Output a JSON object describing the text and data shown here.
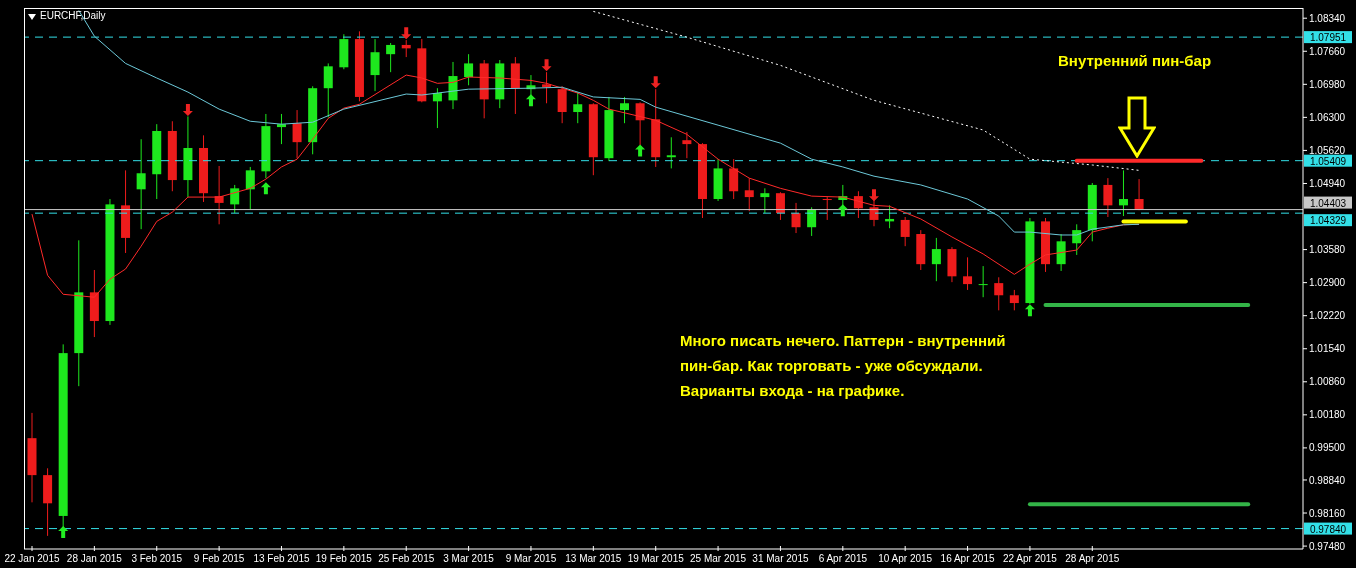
{
  "chart_data": {
    "type": "candlestick",
    "title": "EURCHF,Daily",
    "annotations": [
      "Внутренний пин-бар",
      "Много писать нечего. Паттерн - внутренний пин-бар. Как торговать - уже обсуждали. Варианты входа - на графике."
    ],
    "categories": [
      "22 Jan 2015",
      null,
      null,
      null,
      "28 Jan 2015",
      null,
      null,
      null,
      "3 Feb 2015",
      null,
      null,
      null,
      "9 Feb 2015",
      null,
      null,
      null,
      "13 Feb 2015",
      null,
      null,
      null,
      "19 Feb 2015",
      null,
      null,
      null,
      "25 Feb 2015",
      null,
      null,
      null,
      "3 Mar 2015",
      null,
      null,
      null,
      "9 Mar 2015",
      null,
      null,
      null,
      "13 Mar 2015",
      null,
      null,
      null,
      "19 Mar 2015",
      null,
      null,
      null,
      "25 Mar 2015",
      null,
      null,
      null,
      "31 Mar 2015",
      null,
      null,
      null,
      "6 Apr 2015",
      null,
      null,
      null,
      "10 Apr 2015",
      null,
      null,
      null,
      "16 Apr 2015",
      null,
      null,
      null,
      "22 Apr 2015",
      null,
      null,
      null,
      "28 Apr 2015",
      null,
      null,
      null,
      null,
      null,
      null,
      null,
      null,
      null,
      null,
      null,
      null,
      null
    ],
    "ohlc": [
      [
        0.997,
        1.0022,
        0.9838,
        0.9894
      ],
      [
        0.9894,
        0.9908,
        0.9769,
        0.9836
      ],
      [
        0.981,
        1.0163,
        0.9783,
        1.0145
      ],
      [
        1.0145,
        1.0377,
        1.0077,
        1.027
      ],
      [
        1.027,
        1.0316,
        1.0178,
        1.0211
      ],
      [
        1.0211,
        1.0462,
        1.0203,
        1.0451
      ],
      [
        1.0449,
        1.0521,
        1.0351,
        1.0382
      ],
      [
        1.0482,
        1.0585,
        1.04,
        1.0515
      ],
      [
        1.0513,
        1.0616,
        1.0462,
        1.0602
      ],
      [
        1.0602,
        1.0622,
        1.0478,
        1.0501
      ],
      [
        1.0501,
        1.0632,
        1.0466,
        1.0567
      ],
      [
        1.0567,
        1.0593,
        1.0456,
        1.0474
      ],
      [
        1.0468,
        1.053,
        1.041,
        1.0454
      ],
      [
        1.0451,
        1.0491,
        1.0433,
        1.0484
      ],
      [
        1.0482,
        1.0528,
        1.0441,
        1.0521
      ],
      [
        1.0519,
        1.0637,
        1.0505,
        1.0612
      ],
      [
        1.061,
        1.0637,
        1.0575,
        1.0616
      ],
      [
        1.0618,
        1.0645,
        1.0546,
        1.0579
      ],
      [
        1.0579,
        1.0694,
        1.0554,
        1.069
      ],
      [
        1.069,
        1.0741,
        1.063,
        1.0735
      ],
      [
        1.0733,
        1.0801,
        1.0729,
        1.0791
      ],
      [
        1.0791,
        1.0807,
        1.0663,
        1.0672
      ],
      [
        1.0717,
        1.0791,
        1.0684,
        1.0764
      ],
      [
        1.076,
        1.0783,
        1.0723,
        1.0779
      ],
      [
        1.0779,
        1.0789,
        1.0754,
        1.0772
      ],
      [
        1.0772,
        1.0791,
        1.0661,
        1.0663
      ],
      [
        1.0663,
        1.069,
        1.0608,
        1.068
      ],
      [
        1.0665,
        1.0744,
        1.0647,
        1.0715
      ],
      [
        1.0713,
        1.076,
        1.0696,
        1.0741
      ],
      [
        1.0741,
        1.0748,
        1.0628,
        1.0667
      ],
      [
        1.0667,
        1.0748,
        1.0649,
        1.0741
      ],
      [
        1.0741,
        1.0754,
        1.0637,
        1.069
      ],
      [
        1.0688,
        1.0717,
        1.0676,
        1.0696
      ],
      [
        1.0698,
        1.0723,
        1.0659,
        1.0692
      ],
      [
        1.0688,
        1.0694,
        1.0618,
        1.0641
      ],
      [
        1.0641,
        1.0682,
        1.0618,
        1.0657
      ],
      [
        1.0657,
        1.0659,
        1.0511,
        1.0548
      ],
      [
        1.0546,
        1.0672,
        1.054,
        1.0645
      ],
      [
        1.0645,
        1.0672,
        1.0618,
        1.0659
      ],
      [
        1.0659,
        1.0661,
        1.0573,
        1.0624
      ],
      [
        1.0626,
        1.0688,
        1.0528,
        1.0548
      ],
      [
        1.0548,
        1.0589,
        1.0525,
        1.0552
      ],
      [
        1.0583,
        1.06,
        1.0546,
        1.0575
      ],
      [
        1.0575,
        1.0577,
        1.0423,
        1.0462
      ],
      [
        1.0462,
        1.0544,
        1.0458,
        1.0525
      ],
      [
        1.0525,
        1.0544,
        1.0462,
        1.0478
      ],
      [
        1.048,
        1.0505,
        1.0437,
        1.0466
      ],
      [
        1.0466,
        1.0484,
        1.0433,
        1.0474
      ],
      [
        1.0474,
        1.0476,
        1.0419,
        1.0433
      ],
      [
        1.0433,
        1.0454,
        1.0392,
        1.0404
      ],
      [
        1.0404,
        1.0445,
        1.0386,
        1.0441
      ],
      [
        1.0462,
        1.0466,
        1.0419,
        1.046
      ],
      [
        1.046,
        1.0491,
        1.0449,
        1.0468
      ],
      [
        1.0468,
        1.0478,
        1.0423,
        1.0443
      ],
      [
        1.0445,
        1.046,
        1.0406,
        1.0419
      ],
      [
        1.0416,
        1.0449,
        1.0402,
        1.0421
      ],
      [
        1.0419,
        1.0425,
        1.0365,
        1.0384
      ],
      [
        1.039,
        1.0398,
        1.0316,
        1.0328
      ],
      [
        1.0328,
        1.0382,
        1.0293,
        1.0359
      ],
      [
        1.0359,
        1.0363,
        1.0291,
        1.0303
      ],
      [
        1.0303,
        1.0342,
        1.0275,
        1.0287
      ],
      [
        1.0285,
        1.0324,
        1.026,
        1.0287
      ],
      [
        1.0289,
        1.0301,
        1.0233,
        1.0264
      ],
      [
        1.0264,
        1.0275,
        1.0233,
        1.0248
      ],
      [
        1.0248,
        1.0423,
        1.0246,
        1.0416
      ],
      [
        1.0416,
        1.0423,
        1.0312,
        1.0328
      ],
      [
        1.0328,
        1.039,
        1.0314,
        1.0375
      ],
      [
        1.0371,
        1.041,
        1.0347,
        1.0398
      ],
      [
        1.0398,
        1.0495,
        1.0375,
        1.0491
      ],
      [
        1.0491,
        1.0505,
        1.0425,
        1.0449
      ],
      [
        1.0449,
        1.0521,
        1.0427,
        1.0462
      ],
      [
        1.0462,
        1.0503,
        1.0439,
        1.044
      ],
      null,
      null,
      null,
      null,
      null,
      null,
      null,
      null,
      null,
      null
    ],
    "colors": [
      "#ee1c1c",
      "#ee1c1c",
      "#1ee81e",
      "#1ee81e",
      "#ee1c1c",
      "#1ee81e",
      "#ee1c1c",
      "#1ee81e",
      "#1ee81e",
      "#ee1c1c",
      "#1ee81e",
      "#ee1c1c",
      "#ee1c1c",
      "#1ee81e",
      "#1ee81e",
      "#1ee81e",
      "#1ee81e",
      "#ee1c1c",
      "#1ee81e",
      "#1ee81e",
      "#1ee81e",
      "#ee1c1c",
      "#1ee81e",
      "#1ee81e",
      "#ee1c1c",
      "#ee1c1c",
      "#1ee81e",
      "#1ee81e",
      "#1ee81e",
      "#ee1c1c",
      "#1ee81e",
      "#ee1c1c",
      "#1ee81e",
      "#ee1c1c",
      "#ee1c1c",
      "#1ee81e",
      "#ee1c1c",
      "#1ee81e",
      "#1ee81e",
      "#ee1c1c",
      "#ee1c1c",
      "#1ee81e",
      "#ee1c1c",
      "#ee1c1c",
      "#1ee81e",
      "#ee1c1c",
      "#ee1c1c",
      "#1ee81e",
      "#ee1c1c",
      "#ee1c1c",
      "#1ee81e",
      "#ee1c1c",
      "#1ee81e",
      "#ee1c1c",
      "#ee1c1c",
      "#1ee81e",
      "#ee1c1c",
      "#ee1c1c",
      "#1ee81e",
      "#ee1c1c",
      "#ee1c1c",
      "#1ee81e",
      "#ee1c1c",
      "#ee1c1c",
      "#1ee81e",
      "#ee1c1c",
      "#1ee81e",
      "#1ee81e",
      "#1ee81e",
      "#ee1c1c",
      "#1ee81e",
      "#ee1c1c",
      null,
      null,
      null,
      null,
      null,
      null,
      null,
      null,
      null,
      null
    ],
    "series": [
      {
        "type": "line",
        "color": "#ff2a2a",
        "values": [
          1.0431,
          1.0305,
          1.0266,
          null,
          1.026,
          1.0297,
          1.0318,
          1.0365,
          1.0416,
          1.0435,
          1.0466,
          null,
          1.0466,
          null,
          1.0484,
          1.0503,
          1.0528,
          1.0544,
          1.0585,
          1.0628,
          1.0649,
          1.0657,
          null,
          null,
          1.0717,
          1.0711,
          1.07,
          1.0702,
          1.0713,
          null,
          1.0711,
          null,
          1.0706,
          1.07,
          1.069,
          1.068,
          1.0665,
          1.0647,
          null,
          null,
          1.0624,
          null,
          1.0595,
          null,
          1.0544,
          null,
          1.0505,
          null,
          1.0484,
          null,
          1.0468,
          null,
          1.0466,
          null,
          1.0449,
          1.0447,
          null,
          1.0421,
          null,
          1.0384,
          null,
          1.0349,
          null,
          1.0307,
          1.0328,
          1.0347,
          null,
          1.0357,
          1.0394,
          1.0402,
          1.0409,
          1.041,
          null,
          null,
          null,
          null,
          null,
          null,
          null,
          null,
          null,
          null
        ]
      },
      {
        "type": "line",
        "color": "#6cc8d8",
        "values": [
          null,
          null,
          null,
          1.085,
          1.0797,
          null,
          1.0741,
          null,
          1.0711,
          null,
          1.0682,
          null,
          1.0647,
          null,
          1.0622,
          null,
          1.0616,
          null,
          1.062,
          null,
          1.0647,
          null,
          null,
          null,
          1.0678,
          1.0676,
          null,
          null,
          1.0688,
          null,
          null,
          null,
          1.069,
          null,
          1.0692,
          null,
          1.0672,
          null,
          null,
          1.0667,
          1.0651,
          null,
          null,
          null,
          1.0614,
          null,
          null,
          null,
          1.0577,
          null,
          1.0544,
          null,
          1.0528,
          null,
          1.0509,
          null,
          null,
          1.0491,
          null,
          null,
          1.0462,
          null,
          1.0427,
          1.0394,
          1.0394,
          null,
          1.0388,
          1.0388,
          1.04,
          null,
          1.0409,
          1.041,
          null,
          null,
          null,
          null,
          null,
          null,
          null,
          null,
          null,
          null
        ]
      },
      {
        "type": "line",
        "color": "#ffffff",
        "line_style": "dotted",
        "values": [
          null,
          null,
          null,
          null,
          null,
          null,
          null,
          null,
          null,
          null,
          null,
          null,
          null,
          null,
          null,
          null,
          null,
          null,
          null,
          null,
          null,
          null,
          null,
          null,
          null,
          null,
          null,
          null,
          null,
          null,
          null,
          null,
          null,
          null,
          null,
          null,
          1.0848,
          null,
          null,
          null,
          null,
          null,
          1.0795,
          null,
          null,
          null,
          null,
          null,
          1.0737,
          null,
          null,
          null,
          null,
          null,
          1.0665,
          null,
          null,
          null,
          null,
          null,
          null,
          1.0604,
          null,
          null,
          1.0544,
          null,
          null,
          null,
          1.0532,
          null,
          null,
          1.0521,
          null,
          null,
          null,
          null,
          null,
          null,
          null,
          null,
          null,
          null
        ]
      },
      {
        "type": "line",
        "color": "#ff2a2a",
        "values": [
          null,
          null,
          null,
          null,
          null,
          null,
          null,
          null,
          null,
          null,
          null,
          null,
          null,
          null,
          null,
          null,
          null,
          null,
          null,
          null,
          null,
          null,
          null,
          null,
          null,
          null,
          null,
          null,
          null,
          null,
          null,
          null,
          null,
          null,
          null,
          null,
          null,
          null,
          null,
          null,
          null,
          null,
          null,
          null,
          null,
          null,
          null,
          null,
          null,
          null,
          null,
          null,
          null,
          null,
          null,
          null,
          null,
          null,
          null,
          null,
          null,
          null,
          null,
          null,
          null,
          null,
          null,
          1.0541,
          1.0541,
          1.0541,
          1.0541,
          1.0541,
          1.0541,
          1.0541,
          1.0541,
          1.0541,
          null,
          null,
          null,
          null,
          null,
          null
        ]
      },
      {
        "type": "line",
        "color": "#ffff00",
        "values": [
          null,
          null,
          null,
          null,
          null,
          null,
          null,
          null,
          null,
          null,
          null,
          null,
          null,
          null,
          null,
          null,
          null,
          null,
          null,
          null,
          null,
          null,
          null,
          null,
          null,
          null,
          null,
          null,
          null,
          null,
          null,
          null,
          null,
          null,
          null,
          null,
          null,
          null,
          null,
          null,
          null,
          null,
          null,
          null,
          null,
          null,
          null,
          null,
          null,
          null,
          null,
          null,
          null,
          null,
          null,
          null,
          null,
          null,
          null,
          null,
          null,
          null,
          null,
          null,
          null,
          null,
          null,
          null,
          null,
          null,
          1.0416,
          1.0416,
          1.0416,
          1.0416,
          1.0416,
          null,
          null,
          null,
          null,
          null,
          null,
          null
        ]
      },
      {
        "type": "line",
        "color": "#33b347",
        "values": [
          null,
          null,
          null,
          null,
          null,
          null,
          null,
          null,
          null,
          null,
          null,
          null,
          null,
          null,
          null,
          null,
          null,
          null,
          null,
          null,
          null,
          null,
          null,
          null,
          null,
          null,
          null,
          null,
          null,
          null,
          null,
          null,
          null,
          null,
          null,
          null,
          null,
          null,
          null,
          null,
          null,
          null,
          null,
          null,
          null,
          null,
          null,
          null,
          null,
          null,
          null,
          null,
          null,
          null,
          null,
          null,
          null,
          null,
          null,
          null,
          null,
          null,
          null,
          null,
          null,
          1.0244,
          1.0244,
          1.0244,
          1.0244,
          1.0244,
          1.0244,
          1.0244,
          1.0244,
          1.0244,
          1.0244,
          1.0244,
          1.0244,
          1.0244,
          1.0244,
          null,
          null,
          null
        ]
      },
      {
        "type": "line",
        "color": "#33b347",
        "values": [
          null,
          null,
          null,
          null,
          null,
          null,
          null,
          null,
          null,
          null,
          null,
          null,
          null,
          null,
          null,
          null,
          null,
          null,
          null,
          null,
          null,
          null,
          null,
          null,
          null,
          null,
          null,
          null,
          null,
          null,
          null,
          null,
          null,
          null,
          null,
          null,
          null,
          null,
          null,
          null,
          null,
          null,
          null,
          null,
          null,
          null,
          null,
          null,
          null,
          null,
          null,
          null,
          null,
          null,
          null,
          null,
          null,
          null,
          null,
          null,
          null,
          null,
          null,
          null,
          0.9834,
          0.9834,
          0.9834,
          0.9834,
          0.9834,
          0.9834,
          0.9834,
          0.9834,
          0.9834,
          0.9834,
          0.9834,
          0.9834,
          0.9834,
          0.9834,
          0.9834,
          null,
          null,
          null
        ]
      },
      {
        "type": "scatter",
        "color": "#22ee22",
        "marker": "triangle",
        "values": [
          null,
          null,
          0.9777,
          null,
          null,
          null,
          null,
          null,
          null,
          null,
          null,
          null,
          null,
          null,
          null,
          1.0484,
          null,
          null,
          null,
          null,
          null,
          null,
          null,
          null,
          null,
          null,
          null,
          null,
          null,
          null,
          null,
          null,
          1.0665,
          null,
          null,
          null,
          null,
          null,
          null,
          1.0562,
          null,
          null,
          null,
          null,
          null,
          null,
          null,
          null,
          null,
          null,
          null,
          null,
          1.0439,
          null,
          null,
          null,
          null,
          null,
          null,
          null,
          null,
          null,
          null,
          null,
          1.0233,
          null,
          null,
          null,
          null,
          null,
          null,
          null,
          null,
          null,
          null,
          null,
          null,
          null,
          null,
          null,
          null,
          null
        ]
      },
      {
        "type": "scatter",
        "color": "#ee2222",
        "marker": "triangle",
        "values": [
          null,
          null,
          null,
          null,
          null,
          null,
          null,
          null,
          null,
          null,
          1.0645,
          null,
          null,
          null,
          null,
          null,
          null,
          null,
          null,
          null,
          null,
          null,
          null,
          null,
          1.0803,
          null,
          null,
          null,
          null,
          null,
          null,
          null,
          null,
          1.0737,
          null,
          null,
          null,
          null,
          null,
          null,
          1.0702,
          null,
          null,
          null,
          null,
          null,
          null,
          null,
          null,
          null,
          null,
          null,
          null,
          null,
          1.047,
          null,
          null,
          null,
          null,
          null,
          null,
          null,
          null,
          null,
          null,
          null,
          null,
          null,
          null,
          null,
          null,
          null,
          null,
          null,
          null,
          null,
          null,
          null,
          null,
          null,
          null,
          null
        ]
      }
    ],
    "ylim": [
      0.9742,
      1.0855
    ],
    "yticks": [
      {
        "value": 1.0834,
        "label": "1.08340"
      },
      {
        "value": 1.0766,
        "label": "1.07660"
      },
      {
        "value": 1.0698,
        "label": "1.06980"
      },
      {
        "value": 1.063,
        "label": "1.06300"
      },
      {
        "value": 1.0562,
        "label": "1.05620"
      },
      {
        "value": 1.0494,
        "label": "1.04940"
      },
      {
        "value": 1.0358,
        "label": "1.03580"
      },
      {
        "value": 1.029,
        "label": "1.02900"
      },
      {
        "value": 1.0222,
        "label": "1.02220"
      },
      {
        "value": 1.0154,
        "label": "1.01540"
      },
      {
        "value": 1.0086,
        "label": "1.00860"
      },
      {
        "value": 1.0018,
        "label": "1.00180"
      },
      {
        "value": 0.995,
        "label": "0.99500"
      },
      {
        "value": 0.9884,
        "label": "0.98840"
      },
      {
        "value": 0.9816,
        "label": "0.98160"
      },
      {
        "value": 0.9748,
        "label": "0.97480"
      }
    ],
    "ref_lines": [
      {
        "axis": "y",
        "value": 1.07951,
        "label": "1.07951",
        "color": "#33e0e8",
        "line_style": "dashed"
      },
      {
        "axis": "y",
        "value": 1.05409,
        "label": "1.05409",
        "color": "#33e0e8",
        "line_style": "dashed"
      },
      {
        "axis": "y",
        "value": 1.04403,
        "label": "1.04403",
        "color": "#c8c8c8",
        "line_style": "solid"
      },
      {
        "axis": "y",
        "value": 1.04329,
        "label": "1.04329",
        "color": "#33e0e8",
        "line_style": "dashed"
      },
      {
        "axis": "y",
        "value": 0.9784,
        "label": "0.97840",
        "color": "#33e0e8",
        "line_style": "dashed"
      }
    ]
  }
}
